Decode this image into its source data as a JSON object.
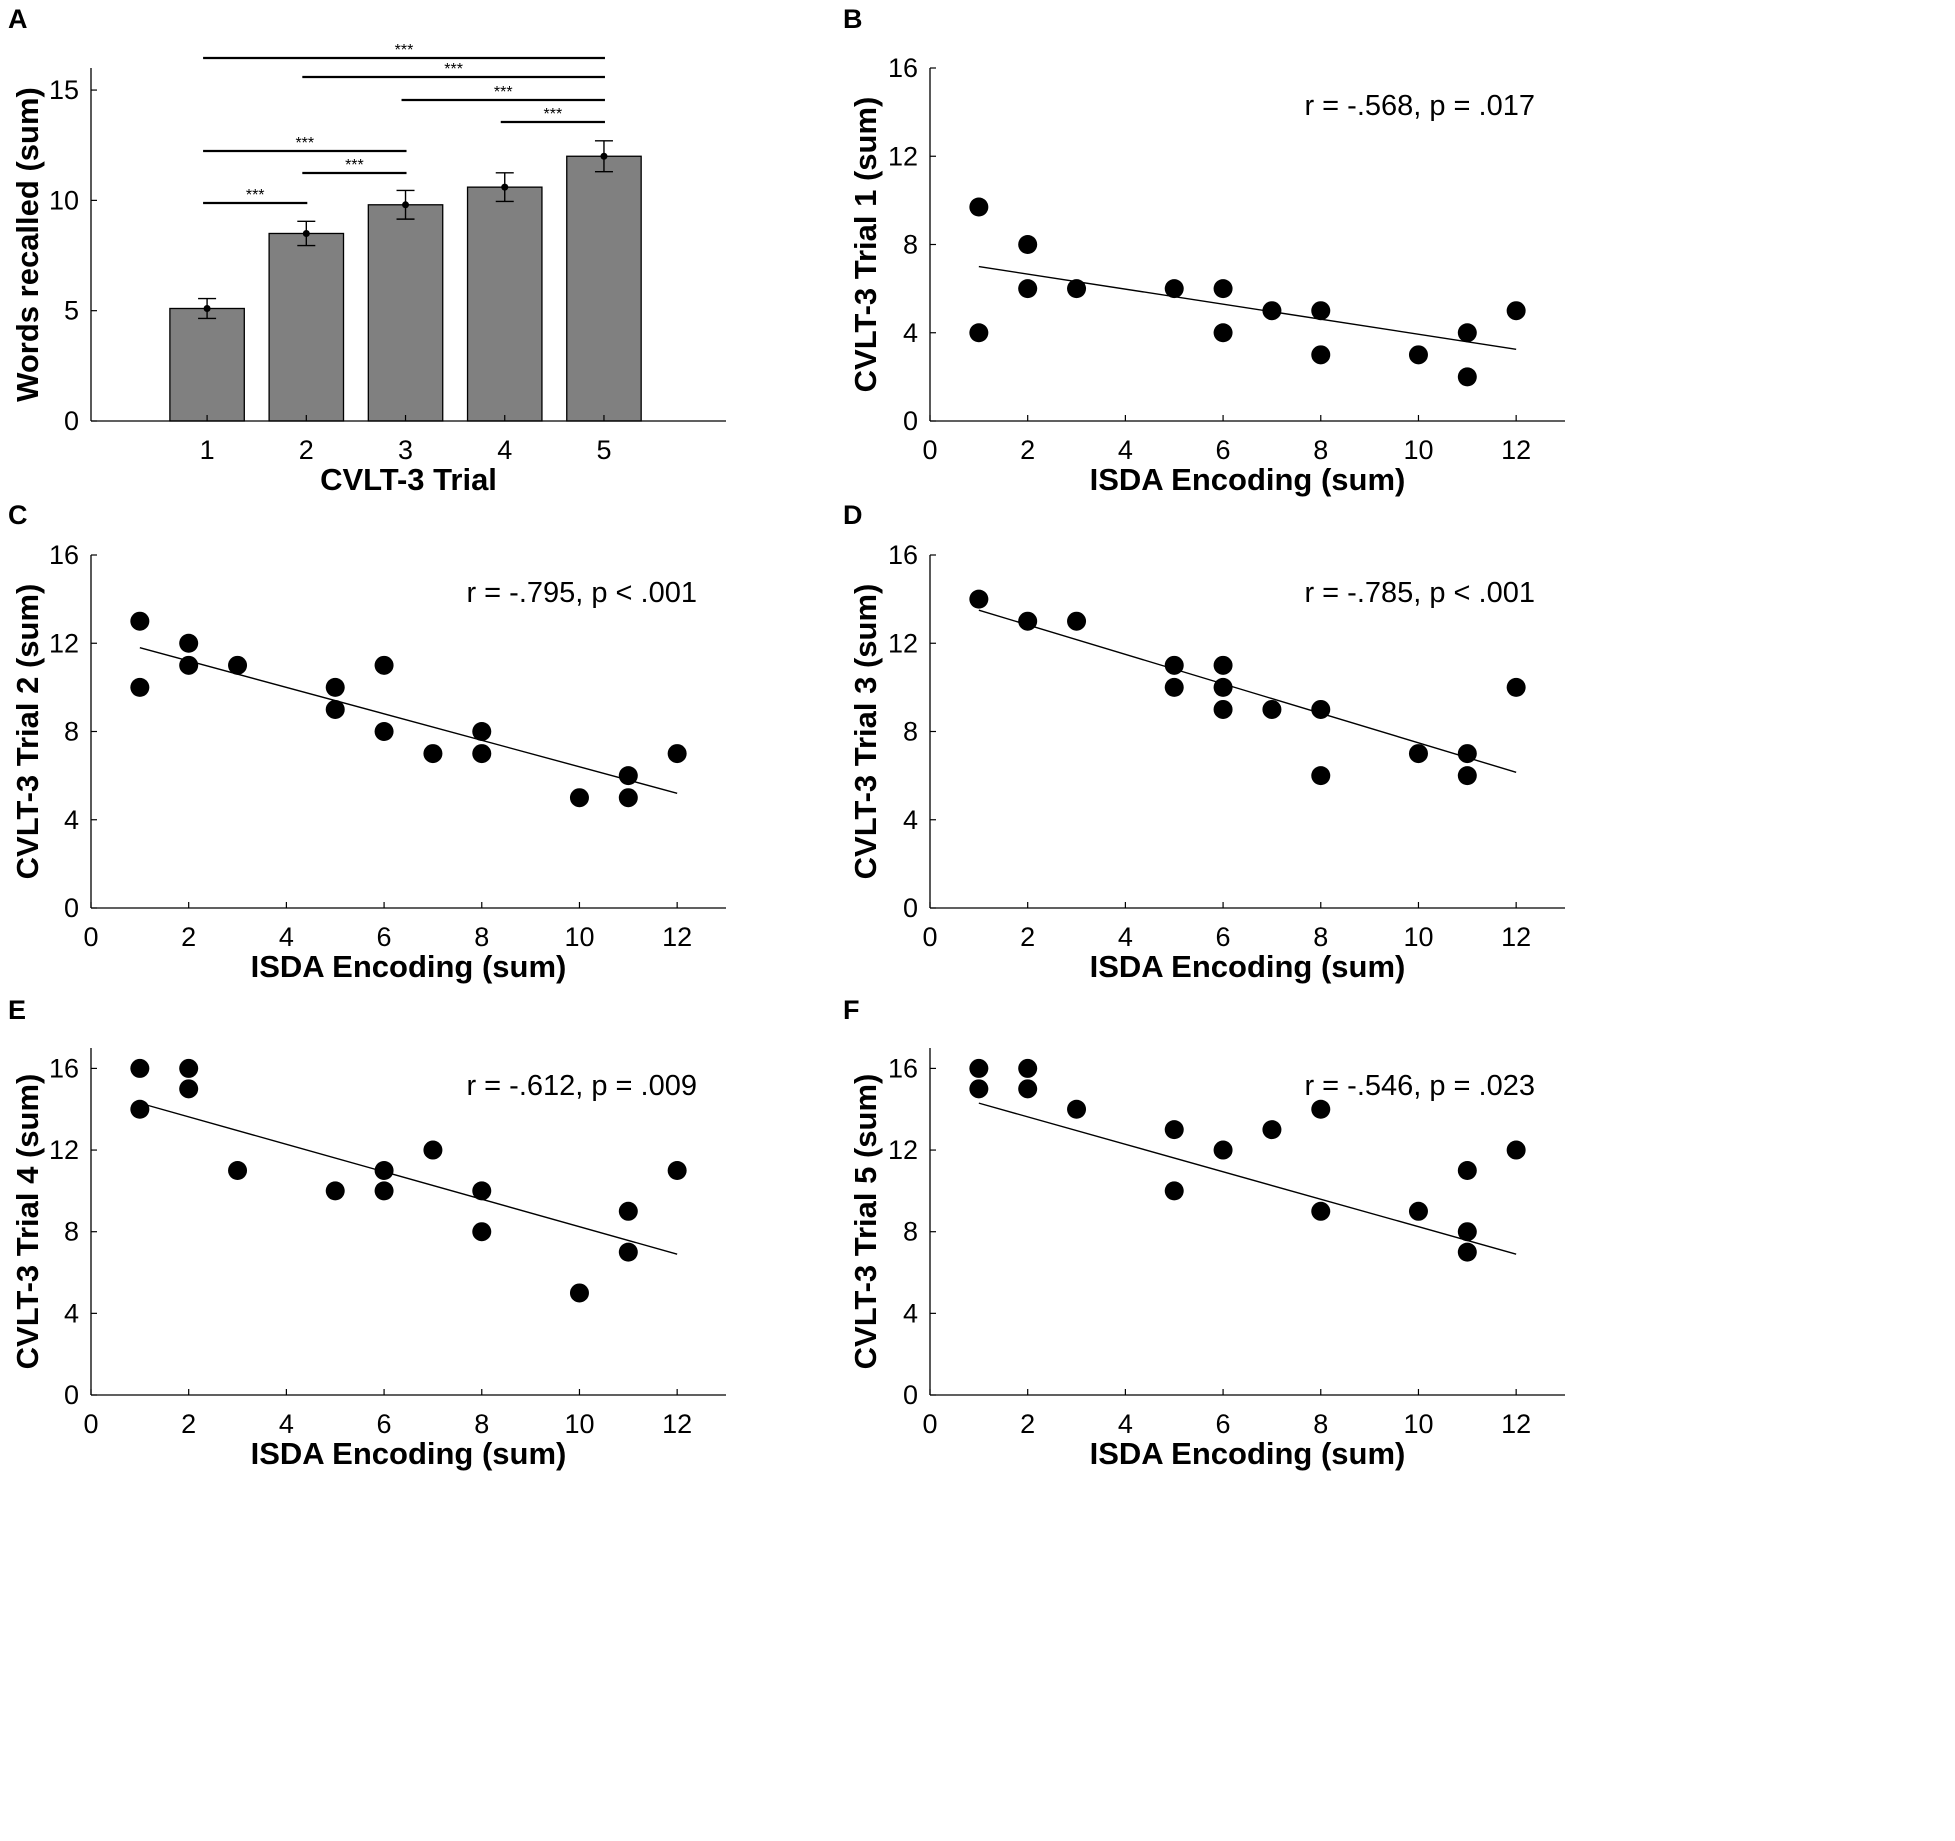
{
  "chart_data": [
    {
      "panel": "A",
      "type": "bar",
      "categories": [
        "1",
        "2",
        "3",
        "4",
        "5"
      ],
      "values": [
        5.1,
        8.5,
        9.8,
        10.6,
        12.0
      ],
      "errors": [
        0.45,
        0.55,
        0.65,
        0.65,
        0.7
      ],
      "xlabel": "CVLT-3 Trial",
      "ylabel": "Words recalled (sum)",
      "ylim": [
        0,
        16
      ],
      "yticks": [
        "0",
        "5",
        "10",
        "15"
      ],
      "bar_color": "#808080",
      "significance": [
        {
          "from": "1",
          "to": "5",
          "label": "***"
        },
        {
          "from": "2",
          "to": "5",
          "label": "***"
        },
        {
          "from": "3",
          "to": "5",
          "label": "***"
        },
        {
          "from": "4",
          "to": "5",
          "label": "***"
        },
        {
          "from": "1",
          "to": "3",
          "label": "***"
        },
        {
          "from": "2",
          "to": "3",
          "label": "***"
        },
        {
          "from": "1",
          "to": "2",
          "label": "***"
        }
      ]
    },
    {
      "panel": "B",
      "type": "scatter",
      "xlabel": "ISDA Encoding (sum)",
      "ylabel": "CVLT-3 Trial 1 (sum)",
      "annotation": "r = -.568, p = .017",
      "xlim": [
        0,
        13
      ],
      "ylim": [
        0,
        16
      ],
      "xticks": [
        "0",
        "2",
        "4",
        "6",
        "8",
        "10",
        "12"
      ],
      "yticks": [
        "0",
        "4",
        "8",
        "12",
        "16"
      ],
      "points": [
        [
          1,
          9.7
        ],
        [
          1,
          4
        ],
        [
          2,
          8
        ],
        [
          2,
          6
        ],
        [
          3,
          6
        ],
        [
          5,
          6
        ],
        [
          6,
          6
        ],
        [
          6,
          4
        ],
        [
          7,
          5
        ],
        [
          8,
          5
        ],
        [
          8,
          3
        ],
        [
          10,
          3
        ],
        [
          11,
          4
        ],
        [
          11,
          2
        ],
        [
          12,
          5
        ]
      ],
      "fit": {
        "x": [
          1,
          12
        ],
        "y": [
          7.0,
          3.25
        ]
      }
    },
    {
      "panel": "C",
      "type": "scatter",
      "xlabel": "ISDA Encoding (sum)",
      "ylabel": "CVLT-3 Trial 2 (sum)",
      "annotation": "r = -.795, p < .001",
      "xlim": [
        0,
        13
      ],
      "ylim": [
        0,
        16
      ],
      "xticks": [
        "0",
        "2",
        "4",
        "6",
        "8",
        "10",
        "12"
      ],
      "yticks": [
        "0",
        "4",
        "8",
        "12",
        "16"
      ],
      "points": [
        [
          1,
          13
        ],
        [
          1,
          10
        ],
        [
          2,
          12
        ],
        [
          2,
          11
        ],
        [
          3,
          11
        ],
        [
          5,
          10
        ],
        [
          5,
          9
        ],
        [
          6,
          11
        ],
        [
          6,
          8
        ],
        [
          7,
          7
        ],
        [
          8,
          8
        ],
        [
          8,
          7
        ],
        [
          10,
          5
        ],
        [
          11,
          6
        ],
        [
          11,
          5
        ],
        [
          12,
          7
        ]
      ],
      "fit": {
        "x": [
          1,
          12
        ],
        "y": [
          11.8,
          5.2
        ]
      }
    },
    {
      "panel": "D",
      "type": "scatter",
      "xlabel": "ISDA Encoding (sum)",
      "ylabel": "CVLT-3 Trial 3 (sum)",
      "annotation": "r = -.785, p < .001",
      "xlim": [
        0,
        13
      ],
      "ylim": [
        0,
        16
      ],
      "xticks": [
        "0",
        "2",
        "4",
        "6",
        "8",
        "10",
        "12"
      ],
      "yticks": [
        "0",
        "4",
        "8",
        "12",
        "16"
      ],
      "points": [
        [
          1,
          14
        ],
        [
          2,
          13
        ],
        [
          3,
          13
        ],
        [
          5,
          11
        ],
        [
          5,
          10
        ],
        [
          6,
          11
        ],
        [
          6,
          10
        ],
        [
          6,
          9
        ],
        [
          7,
          9
        ],
        [
          8,
          9
        ],
        [
          8,
          6
        ],
        [
          10,
          7
        ],
        [
          11,
          7
        ],
        [
          11,
          6
        ],
        [
          12,
          10
        ]
      ],
      "fit": {
        "x": [
          1,
          12
        ],
        "y": [
          13.5,
          6.15
        ]
      }
    },
    {
      "panel": "E",
      "type": "scatter",
      "xlabel": "ISDA Encoding (sum)",
      "ylabel": "CVLT-3 Trial 4 (sum)",
      "annotation": "r = -.612, p = .009",
      "xlim": [
        0,
        13
      ],
      "ylim": [
        0,
        17
      ],
      "xticks": [
        "0",
        "2",
        "4",
        "6",
        "8",
        "10",
        "12"
      ],
      "yticks": [
        "0",
        "4",
        "8",
        "12",
        "16"
      ],
      "points": [
        [
          1,
          16
        ],
        [
          1,
          14
        ],
        [
          2,
          16
        ],
        [
          2,
          15
        ],
        [
          3,
          11
        ],
        [
          5,
          10
        ],
        [
          6,
          11
        ],
        [
          6,
          10
        ],
        [
          7,
          12
        ],
        [
          8,
          10
        ],
        [
          8,
          8
        ],
        [
          10,
          5
        ],
        [
          11,
          9
        ],
        [
          11,
          7
        ],
        [
          12,
          11
        ]
      ],
      "fit": {
        "x": [
          1,
          12
        ],
        "y": [
          14.3,
          6.9
        ]
      }
    },
    {
      "panel": "F",
      "type": "scatter",
      "xlabel": "ISDA Encoding (sum)",
      "ylabel": "CVLT-3 Trial 5 (sum)",
      "annotation": "r = -.546, p = .023",
      "xlim": [
        0,
        13
      ],
      "ylim": [
        0,
        17
      ],
      "xticks": [
        "0",
        "2",
        "4",
        "6",
        "8",
        "10",
        "12"
      ],
      "yticks": [
        "0",
        "4",
        "8",
        "12",
        "16"
      ],
      "points": [
        [
          1,
          16
        ],
        [
          1,
          15
        ],
        [
          2,
          16
        ],
        [
          2,
          15
        ],
        [
          3,
          14
        ],
        [
          5,
          13
        ],
        [
          5,
          10
        ],
        [
          6,
          12
        ],
        [
          7,
          13
        ],
        [
          8,
          14
        ],
        [
          8,
          9
        ],
        [
          10,
          9
        ],
        [
          11,
          11
        ],
        [
          11,
          8
        ],
        [
          11,
          7
        ],
        [
          12,
          12
        ]
      ],
      "fit": {
        "x": [
          1,
          12
        ],
        "y": [
          14.3,
          6.9
        ]
      }
    }
  ]
}
